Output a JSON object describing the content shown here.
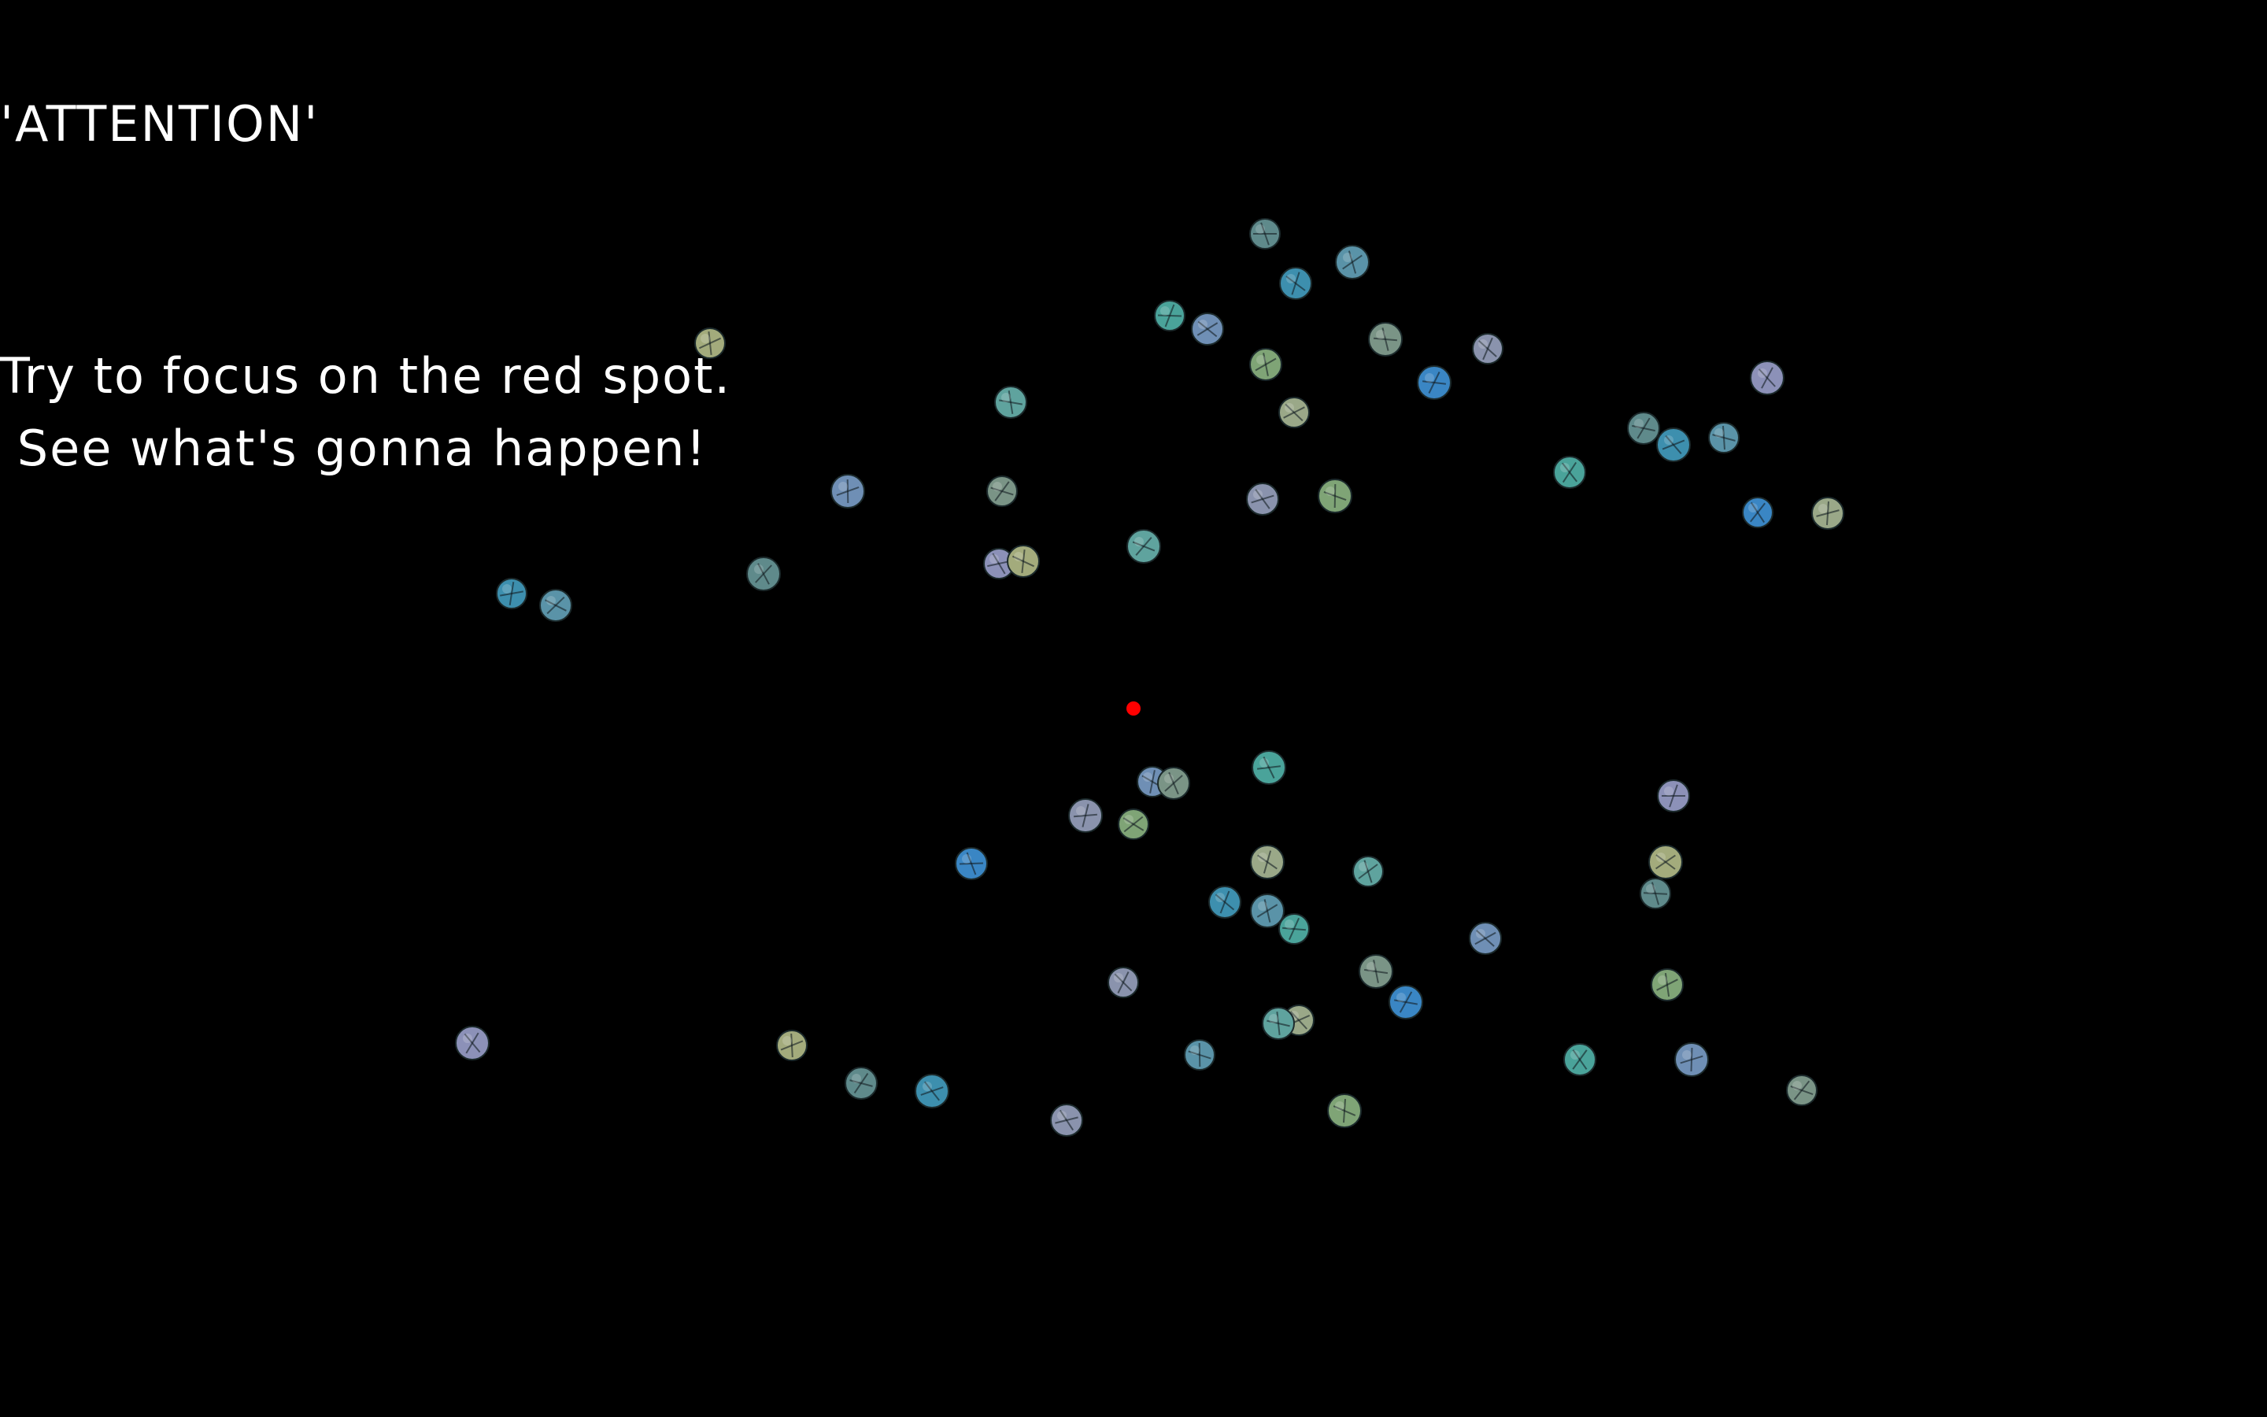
{
  "title": "'ATTENTION'",
  "instructions": {
    "line1": "Try to focus on the red spot.",
    "line2": " See what's gonna happen!"
  },
  "fixation_color": "#ff0000",
  "background_color": "#000000",
  "text_color": "#ffffff",
  "dot_palette": [
    "#5f8a8b",
    "#3d8fae",
    "#5a93a8",
    "#4aa39a",
    "#6f8fb5",
    "#7a9486",
    "#8a93ad",
    "#7fa476",
    "#3a86c4",
    "#9aa888",
    "#5fa39e",
    "#8c91b8",
    "#a3ab7c"
  ]
}
